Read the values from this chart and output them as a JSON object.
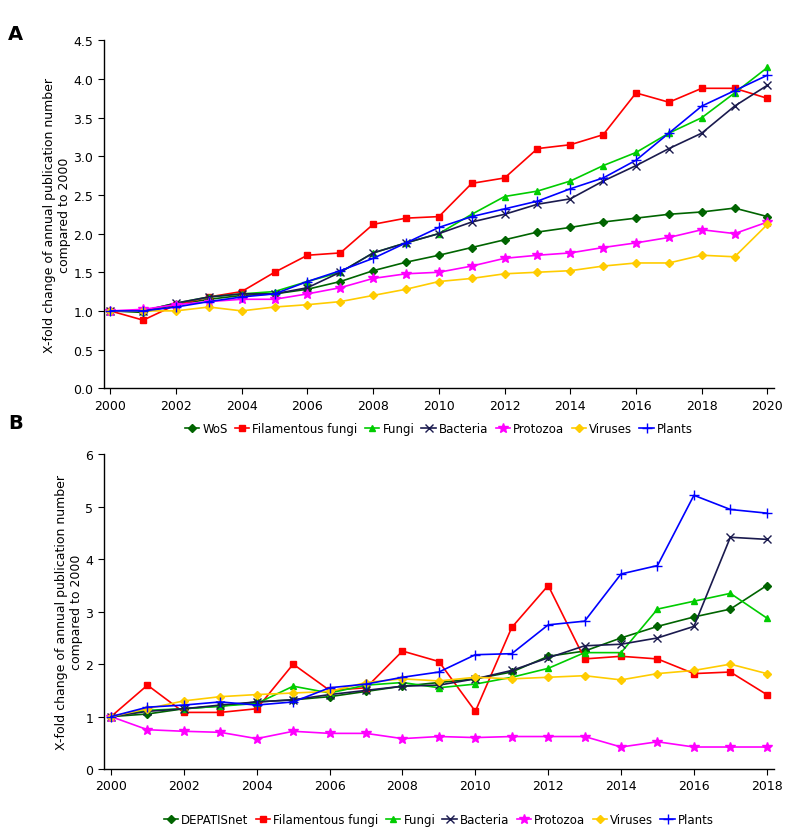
{
  "panel_A": {
    "title": "A",
    "years": [
      2000,
      2001,
      2002,
      2003,
      2004,
      2005,
      2006,
      2007,
      2008,
      2009,
      2010,
      2011,
      2012,
      2013,
      2014,
      2015,
      2016,
      2017,
      2018,
      2019,
      2020
    ],
    "WoS": [
      1.0,
      0.98,
      1.08,
      1.15,
      1.2,
      1.22,
      1.28,
      1.38,
      1.52,
      1.63,
      1.72,
      1.82,
      1.92,
      2.02,
      2.08,
      2.15,
      2.2,
      2.25,
      2.28,
      2.33,
      2.22
    ],
    "Filamentous_fungi": [
      1.0,
      0.88,
      1.08,
      1.18,
      1.25,
      1.5,
      1.72,
      1.75,
      2.12,
      2.2,
      2.22,
      2.65,
      2.72,
      3.1,
      3.15,
      3.28,
      3.82,
      3.7,
      3.88,
      3.88,
      3.75
    ],
    "Fungi": [
      1.0,
      1.0,
      1.1,
      1.18,
      1.22,
      1.25,
      1.38,
      1.5,
      1.75,
      1.88,
      2.0,
      2.25,
      2.48,
      2.55,
      2.68,
      2.88,
      3.05,
      3.3,
      3.5,
      3.82,
      4.15
    ],
    "Bacteria": [
      1.0,
      1.0,
      1.1,
      1.18,
      1.22,
      1.22,
      1.3,
      1.5,
      1.75,
      1.88,
      2.0,
      2.15,
      2.25,
      2.38,
      2.45,
      2.68,
      2.88,
      3.1,
      3.3,
      3.65,
      3.92
    ],
    "Protozoa": [
      1.0,
      1.02,
      1.08,
      1.12,
      1.15,
      1.15,
      1.22,
      1.3,
      1.42,
      1.48,
      1.5,
      1.58,
      1.68,
      1.72,
      1.75,
      1.82,
      1.88,
      1.95,
      2.05,
      2.0,
      2.15
    ],
    "Viruses": [
      1.0,
      1.0,
      1.0,
      1.05,
      1.0,
      1.05,
      1.08,
      1.12,
      1.2,
      1.28,
      1.38,
      1.42,
      1.48,
      1.5,
      1.52,
      1.58,
      1.62,
      1.62,
      1.72,
      1.7,
      2.12
    ],
    "Plants": [
      1.0,
      1.0,
      1.05,
      1.12,
      1.18,
      1.22,
      1.38,
      1.52,
      1.68,
      1.88,
      2.08,
      2.22,
      2.32,
      2.42,
      2.58,
      2.72,
      2.95,
      3.3,
      3.65,
      3.85,
      4.05
    ],
    "ylim": [
      0,
      4.5
    ],
    "yticks": [
      0,
      0.5,
      1.0,
      1.5,
      2.0,
      2.5,
      3.0,
      3.5,
      4.0,
      4.5
    ],
    "xlim": [
      2000,
      2020
    ],
    "xticks": [
      2000,
      2002,
      2004,
      2006,
      2008,
      2010,
      2012,
      2014,
      2016,
      2018,
      2020
    ]
  },
  "panel_B": {
    "title": "B",
    "years": [
      2000,
      2001,
      2002,
      2003,
      2004,
      2005,
      2006,
      2007,
      2008,
      2009,
      2010,
      2011,
      2012,
      2013,
      2014,
      2015,
      2016,
      2017,
      2018
    ],
    "DEPATISnet": [
      1.0,
      1.05,
      1.15,
      1.2,
      1.28,
      1.32,
      1.38,
      1.48,
      1.58,
      1.65,
      1.72,
      1.85,
      2.15,
      2.25,
      2.5,
      2.72,
      2.9,
      3.05,
      3.5
    ],
    "Filamentous_fungi": [
      1.0,
      1.6,
      1.08,
      1.08,
      1.15,
      2.0,
      1.5,
      1.55,
      2.25,
      2.05,
      1.1,
      2.7,
      3.5,
      2.1,
      2.15,
      2.1,
      1.82,
      1.85,
      1.42
    ],
    "Fungi": [
      1.0,
      1.12,
      1.15,
      1.2,
      1.25,
      1.58,
      1.45,
      1.6,
      1.65,
      1.55,
      1.62,
      1.75,
      1.92,
      2.22,
      2.22,
      3.05,
      3.2,
      3.35,
      2.88
    ],
    "Bacteria": [
      1.0,
      1.1,
      1.15,
      1.22,
      1.28,
      1.32,
      1.42,
      1.5,
      1.58,
      1.6,
      1.72,
      1.88,
      2.12,
      2.35,
      2.38,
      2.5,
      2.72,
      4.42,
      4.38
    ],
    "Protozoa": [
      1.0,
      0.75,
      0.72,
      0.7,
      0.58,
      0.72,
      0.68,
      0.68,
      0.58,
      0.62,
      0.6,
      0.62,
      0.62,
      0.62,
      0.42,
      0.52,
      0.42,
      0.42,
      0.42
    ],
    "Viruses": [
      1.0,
      1.15,
      1.3,
      1.38,
      1.42,
      1.45,
      1.48,
      1.65,
      1.72,
      1.68,
      1.75,
      1.72,
      1.75,
      1.78,
      1.7,
      1.82,
      1.88,
      2.0,
      1.82
    ],
    "Plants": [
      1.0,
      1.18,
      1.22,
      1.28,
      1.22,
      1.28,
      1.55,
      1.62,
      1.75,
      1.85,
      2.18,
      2.2,
      2.75,
      2.82,
      3.72,
      3.88,
      5.22,
      4.95,
      4.88
    ],
    "ylim": [
      0,
      6
    ],
    "yticks": [
      0,
      1,
      2,
      3,
      4,
      5,
      6
    ],
    "xlim": [
      2000,
      2018
    ],
    "xticks": [
      2000,
      2002,
      2004,
      2006,
      2008,
      2010,
      2012,
      2014,
      2016,
      2018
    ]
  },
  "colors": {
    "WoS": "#006400",
    "DEPATISnet": "#006400",
    "Filamentous_fungi": "#ff0000",
    "Fungi": "#00cc00",
    "Bacteria": "#1a1a4e",
    "Protozoa": "#ff00ff",
    "Viruses": "#ffcc00",
    "Plants": "#0000ff"
  },
  "markers": {
    "WoS": "D",
    "DEPATISnet": "D",
    "Filamentous_fungi": "s",
    "Fungi": "^",
    "Bacteria": "x",
    "Protozoa": "*",
    "Viruses": "D",
    "Plants": "+"
  },
  "marker_sizes": {
    "WoS": 4,
    "DEPATISnet": 4,
    "Filamentous_fungi": 4,
    "Fungi": 5,
    "Bacteria": 6,
    "Protozoa": 7,
    "Viruses": 4,
    "Plants": 7
  },
  "ylabel": "X-fold change of annual publication number\ncompared to 2000",
  "legend_A": [
    "WoS",
    "Filamentous fungi",
    "Fungi",
    "Bacteria",
    "Protozoa",
    "Viruses",
    "Plants"
  ],
  "legend_B": [
    "DEPATISnet",
    "Filamentous fungi",
    "Fungi",
    "Bacteria",
    "Protozoa",
    "Viruses",
    "Plants"
  ],
  "series_keys_A": [
    "WoS",
    "Filamentous_fungi",
    "Fungi",
    "Bacteria",
    "Protozoa",
    "Viruses",
    "Plants"
  ],
  "series_keys_B": [
    "DEPATISnet",
    "Filamentous_fungi",
    "Fungi",
    "Bacteria",
    "Protozoa",
    "Viruses",
    "Plants"
  ]
}
